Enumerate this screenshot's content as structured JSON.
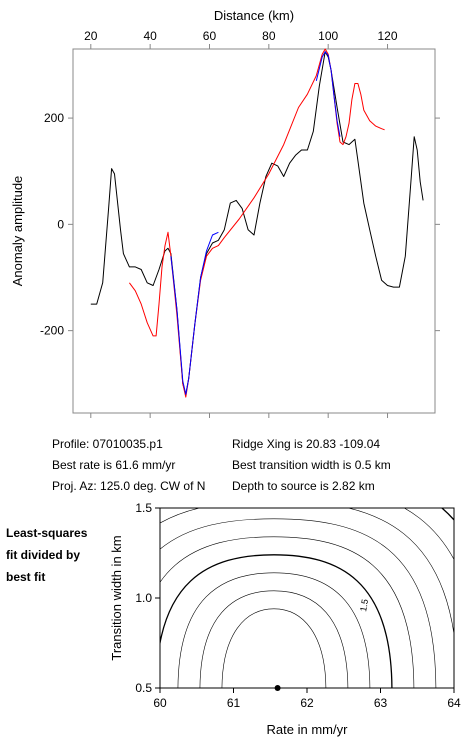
{
  "chart_data": [
    {
      "type": "line",
      "xlabel": "Distance (km)",
      "ylabel": "Anomaly amplitude",
      "xlim": [
        14,
        136
      ],
      "ylim": [
        -355,
        330
      ],
      "x_ticks": [
        20,
        40,
        60,
        80,
        100,
        120
      ],
      "y_ticks": [
        -200,
        0,
        200
      ],
      "x_tick_labels": [
        "20",
        "40",
        "60",
        "80",
        "100",
        "120"
      ],
      "y_tick_labels": [
        "-200",
        "0",
        "200"
      ],
      "grid": false,
      "series": [
        {
          "color": "#000000",
          "points": [
            [
              20,
              -150
            ],
            [
              22,
              -150
            ],
            [
              24,
              -110
            ],
            [
              26,
              30
            ],
            [
              27,
              105
            ],
            [
              28,
              95
            ],
            [
              30,
              -10
            ],
            [
              31,
              -55
            ],
            [
              33,
              -80
            ],
            [
              35,
              -80
            ],
            [
              37,
              -85
            ],
            [
              39,
              -110
            ],
            [
              41,
              -115
            ],
            [
              43,
              -85
            ],
            [
              45,
              -50
            ],
            [
              46,
              -45
            ],
            [
              47,
              -55
            ],
            [
              49,
              -160
            ],
            [
              51,
              -300
            ],
            [
              52,
              -320
            ],
            [
              53,
              -290
            ],
            [
              55,
              -190
            ],
            [
              57,
              -100
            ],
            [
              59,
              -55
            ],
            [
              61,
              -35
            ],
            [
              63,
              -30
            ],
            [
              65,
              -10
            ],
            [
              67,
              40
            ],
            [
              69,
              45
            ],
            [
              71,
              30
            ],
            [
              73,
              -10
            ],
            [
              75,
              -20
            ],
            [
              77,
              40
            ],
            [
              79,
              90
            ],
            [
              81,
              115
            ],
            [
              83,
              110
            ],
            [
              85,
              90
            ],
            [
              87,
              115
            ],
            [
              89,
              130
            ],
            [
              91,
              140
            ],
            [
              93,
              140
            ],
            [
              95,
              175
            ],
            [
              97,
              260
            ],
            [
              99,
              325
            ],
            [
              100,
              315
            ],
            [
              101,
              290
            ],
            [
              103,
              220
            ],
            [
              105,
              155
            ],
            [
              107,
              150
            ],
            [
              109,
              160
            ],
            [
              110,
              120
            ],
            [
              112,
              40
            ],
            [
              114,
              -10
            ],
            [
              116,
              -60
            ],
            [
              118,
              -105
            ],
            [
              120,
              -115
            ],
            [
              122,
              -118
            ],
            [
              124,
              -118
            ],
            [
              126,
              -60
            ],
            [
              128,
              90
            ],
            [
              129,
              165
            ],
            [
              130,
              140
            ],
            [
              131,
              80
            ],
            [
              132,
              45
            ]
          ]
        },
        {
          "color": "#ff0000",
          "points": [
            [
              33,
              -110
            ],
            [
              35,
              -125
            ],
            [
              37,
              -150
            ],
            [
              39,
              -185
            ],
            [
              41,
              -210
            ],
            [
              42,
              -210
            ],
            [
              43,
              -150
            ],
            [
              44,
              -80
            ],
            [
              45,
              -40
            ],
            [
              46,
              -15
            ],
            [
              47,
              -60
            ],
            [
              49,
              -170
            ],
            [
              51,
              -300
            ],
            [
              52,
              -325
            ],
            [
              53,
              -290
            ],
            [
              55,
              -190
            ],
            [
              57,
              -105
            ],
            [
              59,
              -60
            ],
            [
              61,
              -45
            ],
            [
              63,
              -40
            ],
            [
              65,
              -25
            ],
            [
              70,
              10
            ],
            [
              75,
              50
            ],
            [
              80,
              95
            ],
            [
              85,
              150
            ],
            [
              90,
              220
            ],
            [
              93,
              245
            ],
            [
              96,
              280
            ],
            [
              98,
              320
            ],
            [
              99,
              330
            ],
            [
              100,
              320
            ],
            [
              101,
              290
            ],
            [
              102,
              240
            ],
            [
              103,
              190
            ],
            [
              104,
              155
            ],
            [
              105,
              150
            ],
            [
              106,
              165
            ],
            [
              107,
              190
            ],
            [
              108,
              235
            ],
            [
              109,
              265
            ],
            [
              110,
              265
            ],
            [
              111,
              245
            ],
            [
              112,
              215
            ],
            [
              114,
              195
            ],
            [
              116,
              185
            ],
            [
              118,
              180
            ],
            [
              119,
              178
            ]
          ]
        },
        {
          "color": "#0000ff",
          "points": [
            [
              47,
              -60
            ],
            [
              49,
              -160
            ],
            [
              51,
              -295
            ],
            [
              52,
              -320
            ],
            [
              53,
              -290
            ],
            [
              55,
              -190
            ],
            [
              57,
              -100
            ],
            [
              59,
              -50
            ],
            [
              61,
              -20
            ],
            [
              63,
              -15
            ]
          ]
        },
        {
          "color": "#0000ff",
          "points": [
            [
              96,
              270
            ],
            [
              98,
              315
            ],
            [
              99,
              325
            ],
            [
              100,
              318
            ],
            [
              101,
              290
            ],
            [
              102,
              240
            ],
            [
              103,
              195
            ],
            [
              104,
              165
            ]
          ]
        }
      ]
    },
    {
      "type": "contour",
      "xlabel": "Rate in mm/yr",
      "ylabel": "Transition width in km",
      "xlim": [
        60,
        64
      ],
      "ylim": [
        0.5,
        1.5
      ],
      "x_ticks": [
        60,
        61,
        62,
        63,
        64
      ],
      "y_ticks": [
        0.5,
        1.0,
        1.5
      ],
      "x_tick_labels": [
        "60",
        "61",
        "62",
        "63",
        "64"
      ],
      "y_tick_labels": [
        "0.5",
        "1.0",
        "1.5"
      ],
      "contour_label": "1.5",
      "best_fit_point": {
        "rate": 61.6,
        "width": 0.5
      }
    }
  ],
  "info": {
    "profile": "Profile: 07010035.p1",
    "best_rate": "Best rate is 61.6 mm/yr",
    "proj_az": "Proj. Az: 125.0 deg. CW of N",
    "ridge_xing": "Ridge Xing is 20.83 -109.04",
    "best_width": "Best transition width is 0.5 km",
    "depth": "Depth to source is   2.82 km"
  },
  "side_caption": [
    "Least-squares",
    "fit divided by",
    "best fit"
  ]
}
